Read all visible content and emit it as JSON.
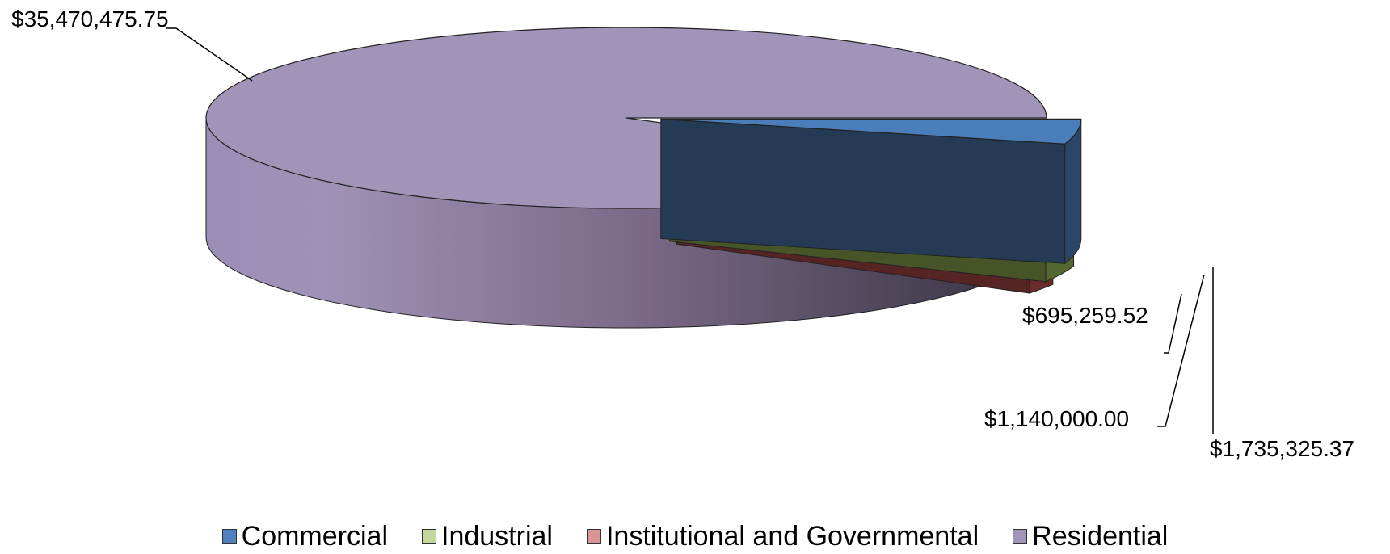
{
  "chart_data": {
    "type": "pie",
    "style": "3d-exploded",
    "categories": [
      "Commercial",
      "Industrial",
      "Institutional and Governmental",
      "Residential"
    ],
    "values": [
      1735325.37,
      1140000.0,
      695259.52,
      35470475.75
    ],
    "data_labels": [
      "$1,735,325.37",
      "$1,140,000.00",
      "$695,259.52",
      "$35,470,475.75"
    ],
    "colors": [
      "#4f81bd",
      "#9bbb59",
      "#c0504d",
      "#8064a2"
    ],
    "top_colors": [
      "#4a7ebb",
      "#bdd597",
      "#d99594",
      "#a294b8"
    ],
    "legend_position": "bottom",
    "title": ""
  }
}
